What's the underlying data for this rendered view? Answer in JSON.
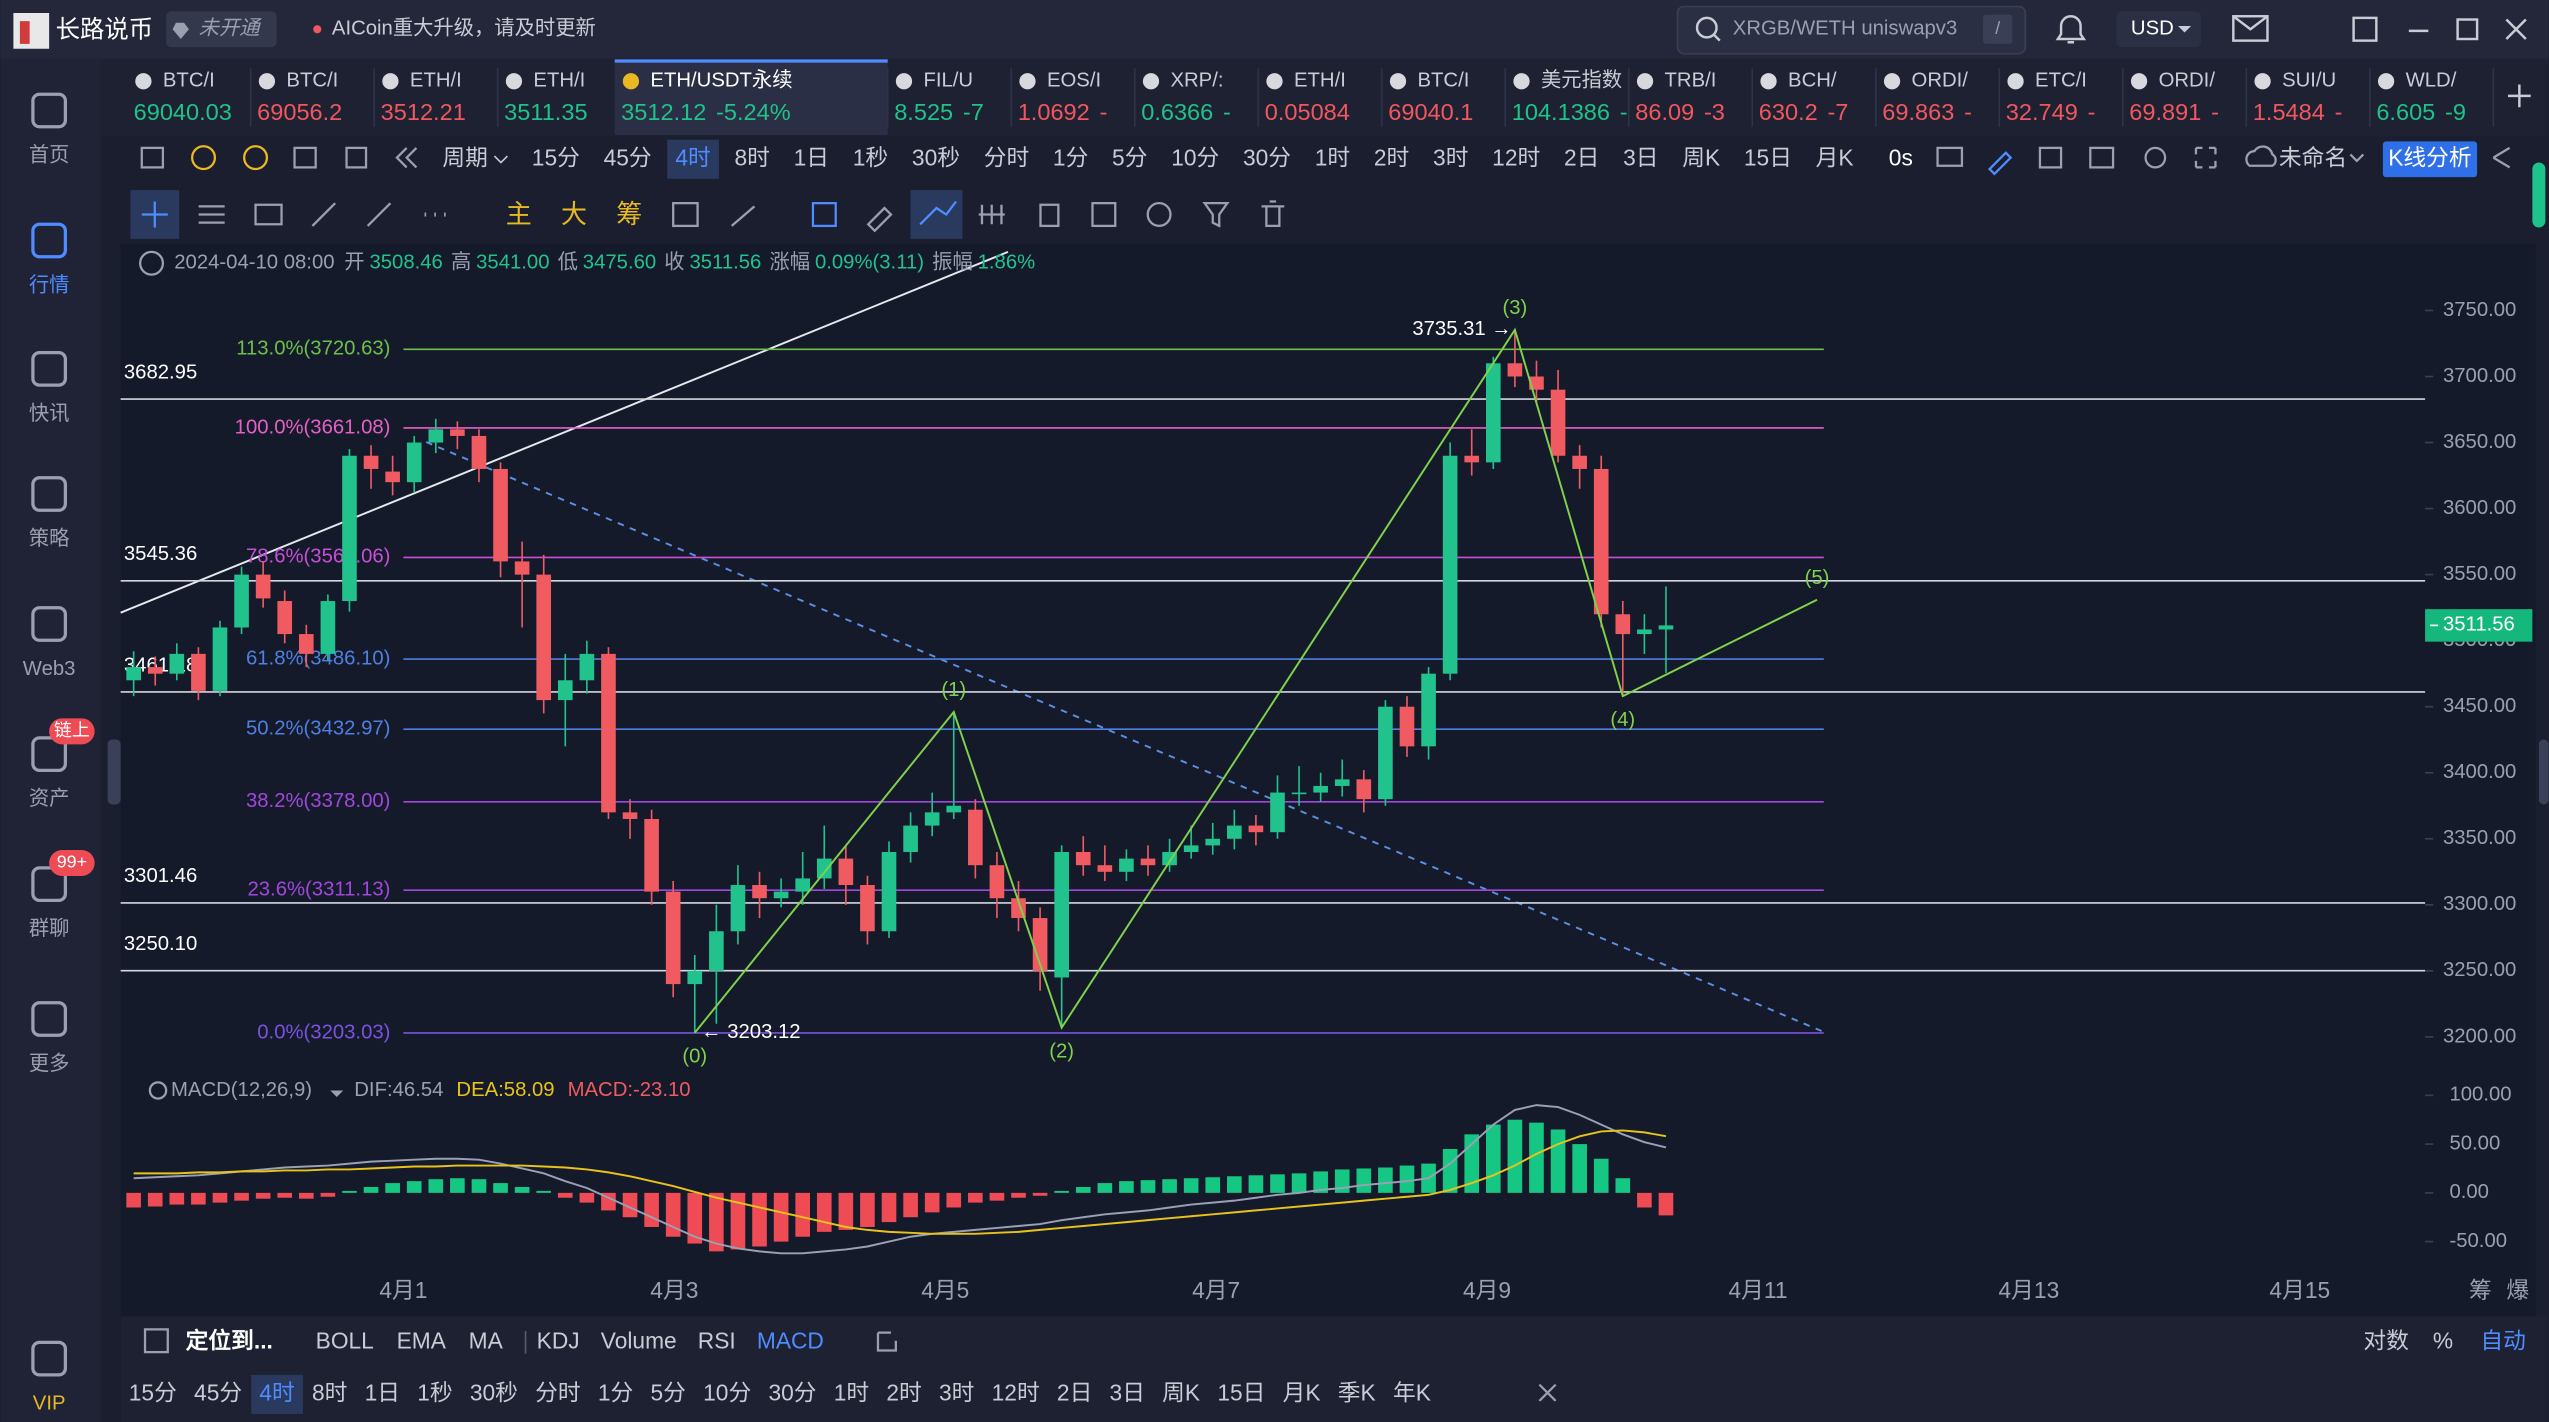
{
  "app": {
    "name": "长路说币",
    "badge": "未开通",
    "notice": "AICoin重大升级，请及时更新",
    "search": "XRGB/WETH uniswapv3",
    "search_key": "/",
    "currency": "USD"
  },
  "sidebar": [
    "首页",
    "行情",
    "快讯",
    "策略",
    "Web3",
    "资产",
    "群聊",
    "更多",
    "VIP"
  ],
  "sidebar_active": 1,
  "sidebar_badges": {
    "asset": "链上",
    "chat": "99+"
  },
  "tickers": [
    {
      "name": "BTC/I",
      "price": "69040.03",
      "color": "#1fc28a"
    },
    {
      "name": "BTC/I",
      "price": "69056.2",
      "color": "#f0575e"
    },
    {
      "name": "ETH/I",
      "price": "3512.21",
      "color": "#f0575e"
    },
    {
      "name": "ETH/I",
      "price": "3511.35",
      "color": "#1fc28a"
    },
    {
      "name": "ETH/USDT永续",
      "price": "3512.12",
      "change": "-5.24%",
      "color": "#1fc28a"
    },
    {
      "name": "FIL/U",
      "price": "8.525",
      "change": "-7",
      "color": "#1fc28a"
    },
    {
      "name": "EOS/I",
      "price": "1.0692",
      "change": "-",
      "color": "#f0575e"
    },
    {
      "name": "XRP/:",
      "price": "0.6366",
      "change": "-",
      "color": "#1fc28a"
    },
    {
      "name": "ETH/I",
      "price": "0.05084",
      "color": "#f0575e"
    },
    {
      "name": "BTC/I",
      "price": "69040.1",
      "color": "#f0575e"
    },
    {
      "name": "美元指数",
      "price": "104.1386",
      "change": "-",
      "color": "#1fc28a"
    },
    {
      "name": "TRB/I",
      "price": "86.09",
      "change": "-3",
      "color": "#f0575e"
    },
    {
      "name": "BCH/",
      "price": "630.2",
      "change": "-7",
      "color": "#f0575e"
    },
    {
      "name": "ORDI/",
      "price": "69.863",
      "change": "-",
      "color": "#f0575e"
    },
    {
      "name": "ETC/I",
      "price": "32.749",
      "change": "-",
      "color": "#f0575e"
    },
    {
      "name": "ORDI/",
      "price": "69.891",
      "change": "-",
      "color": "#f0575e"
    },
    {
      "name": "SUI/U",
      "price": "1.5484",
      "change": "-",
      "color": "#f0575e"
    },
    {
      "name": "WLD/",
      "price": "6.605",
      "change": "-9",
      "color": "#1fc28a"
    }
  ],
  "ticker_active": 4,
  "periods": {
    "label": "周期",
    "items": [
      "15分",
      "45分",
      "4时",
      "8时",
      "1日",
      "1秒",
      "30秒",
      "分时",
      "1分",
      "5分",
      "10分",
      "30分",
      "1时",
      "2时",
      "3时",
      "12时",
      "2日",
      "3日",
      "周K",
      "15日",
      "月K"
    ],
    "active": 2
  },
  "toolbar_right": {
    "delay": "0s",
    "layout": "未命名",
    "analysis": "K线分析"
  },
  "draw_tools": [
    "主",
    "大",
    "筹"
  ],
  "indicators": {
    "locate": "定位到...",
    "main": [
      "BOLL",
      "EMA",
      "MA"
    ],
    "sub": [
      "KDJ",
      "Volume",
      "RSI",
      "MACD"
    ],
    "sub_active": 3,
    "right": [
      "对数",
      "%",
      "自动"
    ],
    "right_active": 2
  },
  "bottom_periods": {
    "items": [
      "15分",
      "45分",
      "4时",
      "8时",
      "1日",
      "1秒",
      "30秒",
      "分时",
      "1分",
      "5分",
      "10分",
      "30分",
      "1时",
      "2时",
      "3时",
      "12时",
      "2日",
      "3日",
      "周K",
      "15日",
      "月K",
      "季K",
      "年K"
    ],
    "active": 2
  },
  "axis_extras": [
    "筹",
    "爆"
  ],
  "chart_data": {
    "type": "candlestick",
    "info": {
      "time": "2024-04-10 08:00",
      "fields": [
        {
          "label": "开",
          "value": "3508.46"
        },
        {
          "label": "高",
          "value": "3541.00"
        },
        {
          "label": "低",
          "value": "3475.60"
        },
        {
          "label": "收",
          "value": "3511.56"
        },
        {
          "label": "涨幅",
          "value": "0.09%(3.11)"
        },
        {
          "label": "振幅",
          "value": "1.86%"
        }
      ]
    },
    "up_color": "#22c28c",
    "down_color": "#ef5b61",
    "open": [
      3470,
      3480,
      3475,
      3490,
      3462,
      3510,
      3550,
      3530,
      3505,
      3490,
      3530,
      3640,
      3628,
      3620,
      3650,
      3660,
      3655,
      3630,
      3560,
      3550,
      3455,
      3470,
      3490,
      3370,
      3365,
      3310,
      3240,
      3250,
      3280,
      3315,
      3305,
      3310,
      3320,
      3335,
      3315,
      3280,
      3340,
      3360,
      3370,
      3372,
      3330,
      3305,
      3290,
      3245,
      3340,
      3330,
      3325,
      3335,
      3330,
      3340,
      3345,
      3350,
      3360,
      3355,
      3385,
      3385,
      3390,
      3395,
      3380,
      3450,
      3420,
      3475,
      3640,
      3635,
      3710,
      3700,
      3690,
      3640,
      3630,
      3520,
      3505,
      3508.46
    ],
    "high": [
      3492,
      3488,
      3498,
      3495,
      3515,
      3556,
      3560,
      3538,
      3512,
      3535,
      3645,
      3648,
      3640,
      3655,
      3668,
      3666,
      3660,
      3635,
      3575,
      3565,
      3490,
      3500,
      3495,
      3380,
      3372,
      3318,
      3262,
      3300,
      3330,
      3325,
      3320,
      3340,
      3360,
      3345,
      3322,
      3348,
      3370,
      3385,
      3446,
      3380,
      3340,
      3318,
      3298,
      3345,
      3352,
      3345,
      3342,
      3345,
      3350,
      3360,
      3362,
      3372,
      3368,
      3398,
      3405,
      3400,
      3410,
      3402,
      3455,
      3458,
      3480,
      3650,
      3660,
      3715,
      3735.31,
      3712,
      3705,
      3648,
      3640,
      3530,
      3520,
      3541
    ],
    "low": [
      3458,
      3466,
      3470,
      3455,
      3458,
      3505,
      3525,
      3498,
      3480,
      3485,
      3522,
      3615,
      3610,
      3612,
      3642,
      3645,
      3620,
      3548,
      3510,
      3445,
      3420,
      3460,
      3365,
      3350,
      3300,
      3230,
      3203.12,
      3210,
      3270,
      3290,
      3298,
      3300,
      3312,
      3300,
      3270,
      3275,
      3332,
      3352,
      3365,
      3320,
      3290,
      3280,
      3235,
      3207,
      3322,
      3318,
      3318,
      3322,
      3325,
      3335,
      3338,
      3342,
      3345,
      3350,
      3375,
      3378,
      3382,
      3370,
      3375,
      3412,
      3410,
      3470,
      3625,
      3630,
      3692,
      3680,
      3635,
      3615,
      3510,
      3458,
      3490,
      3475.6
    ],
    "close": [
      3480,
      3475,
      3490,
      3462,
      3510,
      3550,
      3532,
      3505,
      3490,
      3530,
      3640,
      3630,
      3620,
      3650,
      3660,
      3655,
      3630,
      3560,
      3550,
      3455,
      3470,
      3490,
      3370,
      3365,
      3310,
      3240,
      3250,
      3280,
      3315,
      3305,
      3310,
      3320,
      3335,
      3315,
      3280,
      3340,
      3360,
      3370,
      3375,
      3330,
      3305,
      3290,
      3250,
      3340,
      3330,
      3325,
      3335,
      3330,
      3340,
      3345,
      3350,
      3360,
      3355,
      3385,
      3385,
      3390,
      3395,
      3380,
      3450,
      3420,
      3475,
      3640,
      3635,
      3710,
      3700,
      3690,
      3640,
      3630,
      3520,
      3505,
      3508.46,
      3511.56
    ],
    "ylim": [
      3180,
      3800
    ],
    "yticks": [
      {
        "value": 3200,
        "label": "3200.00"
      },
      {
        "value": 3250,
        "label": "3250.00"
      },
      {
        "value": 3300,
        "label": "3300.00"
      },
      {
        "value": 3350,
        "label": "3350.00"
      },
      {
        "value": 3400,
        "label": "3400.00"
      },
      {
        "value": 3450,
        "label": "3450.00"
      },
      {
        "value": 3500,
        "label": "3500.00"
      },
      {
        "value": 3550,
        "label": "3550.00"
      },
      {
        "value": 3600,
        "label": "3600.00"
      },
      {
        "value": 3650,
        "label": "3650.00"
      },
      {
        "value": 3700,
        "label": "3700.00"
      },
      {
        "value": 3750,
        "label": "3750.00"
      }
    ],
    "xticks": [
      "4月1",
      "4月3",
      "4月5",
      "4月7",
      "4月9",
      "4月11",
      "4月13",
      "4月15"
    ],
    "last_price": 3511.56,
    "levels": [
      3682.95,
      3545.36,
      3461.18,
      3301.46,
      {
        "value": 3250.1,
        "label": "3250.10"
      }
    ],
    "fib": [
      {
        "label": "113.0%(3720.63)",
        "value": 3720.63,
        "color": "#6cc04a"
      },
      {
        "label": "100.0%(3661.08)",
        "value": 3661.08,
        "color": "#e461c4"
      },
      {
        "label": "78.6%(3563.06)",
        "value": 3563.06,
        "color": "#c650d4"
      },
      {
        "label": "61.8%(3486.10)",
        "value": 3486.1,
        "color": "#4f7fe0"
      },
      {
        "label": "50.2%(3432.97)",
        "value": 3432.97,
        "color": "#4f7fe0"
      },
      {
        "label": "38.2%(3378.00)",
        "value": 3378,
        "color": "#a048dc"
      },
      {
        "label": "23.6%(3311.13)",
        "value": 3311.13,
        "color": "#a048dc"
      },
      {
        "label": "0.0%(3203.03)",
        "value": 3203.03,
        "color": "#7a52e0"
      }
    ],
    "wave_color": "#7fd24a",
    "waves": [
      {
        "label": "(0)",
        "index": 26,
        "value": 3203.12
      },
      {
        "label": "(1)",
        "index": 38,
        "value": 3446
      },
      {
        "label": "(2)",
        "index": 43,
        "value": 3207
      },
      {
        "label": "(3)",
        "index": 64,
        "value": 3735.31
      },
      {
        "label": "(4)",
        "index": 69,
        "value": 3458
      },
      {
        "label": "(5)",
        "index": 78,
        "value": 3531
      }
    ],
    "high_marker": {
      "label": "3735.31 →",
      "index": 64
    },
    "low_marker": {
      "label": "← 3203.12",
      "index": 26
    },
    "macd": {
      "title": "MACD(12,26,9)",
      "dif_label": "DIF:46.54",
      "dea_label": "DEA:58.09",
      "macd_label": "MACD:-23.10",
      "ylim": [
        -75,
        115
      ],
      "yticks": [
        {
          "value": 100,
          "label": "100.00"
        },
        {
          "value": 50,
          "label": "50.00"
        },
        {
          "value": 0,
          "label": "0.00"
        },
        {
          "value": -50,
          "label": "-50.00"
        }
      ],
      "hist": [
        -15,
        -14,
        -12,
        -12,
        -10,
        -8,
        -6,
        -5,
        -6,
        -4,
        2,
        6,
        10,
        12,
        14,
        15,
        14,
        10,
        6,
        2,
        -5,
        -10,
        -18,
        -25,
        -35,
        -45,
        -52,
        -60,
        -58,
        -55,
        -50,
        -45,
        -40,
        -38,
        -35,
        -30,
        -25,
        -20,
        -15,
        -10,
        -8,
        -5,
        -3,
        2,
        6,
        10,
        12,
        13,
        14,
        15,
        16,
        17,
        18,
        19,
        20,
        22,
        24,
        25,
        26,
        28,
        30,
        45,
        60,
        70,
        75,
        72,
        65,
        50,
        35,
        15,
        -15,
        -23.1
      ],
      "dif": [
        15,
        16,
        17,
        18,
        20,
        22,
        24,
        26,
        27,
        28,
        30,
        32,
        33,
        34,
        35,
        35,
        34,
        30,
        25,
        20,
        12,
        5,
        -5,
        -15,
        -25,
        -35,
        -45,
        -52,
        -57,
        -60,
        -62,
        -62,
        -60,
        -58,
        -55,
        -50,
        -45,
        -42,
        -40,
        -38,
        -36,
        -34,
        -32,
        -28,
        -25,
        -22,
        -20,
        -18,
        -15,
        -12,
        -10,
        -8,
        -5,
        -2,
        0,
        3,
        5,
        8,
        10,
        12,
        15,
        30,
        50,
        70,
        85,
        90,
        88,
        80,
        70,
        60,
        52,
        46.54
      ],
      "dea": [
        20,
        20,
        20,
        21,
        21,
        22,
        22,
        23,
        23,
        24,
        24,
        25,
        26,
        27,
        27,
        28,
        28,
        28,
        28,
        27,
        26,
        24,
        21,
        17,
        12,
        7,
        1,
        -5,
        -10,
        -15,
        -20,
        -25,
        -30,
        -35,
        -38,
        -40,
        -41,
        -42,
        -42,
        -42,
        -41,
        -40,
        -38,
        -36,
        -34,
        -32,
        -30,
        -28,
        -26,
        -24,
        -22,
        -20,
        -18,
        -16,
        -14,
        -12,
        -10,
        -8,
        -6,
        -4,
        -2,
        3,
        10,
        18,
        28,
        40,
        50,
        58,
        63,
        64,
        62,
        58.09
      ]
    }
  }
}
